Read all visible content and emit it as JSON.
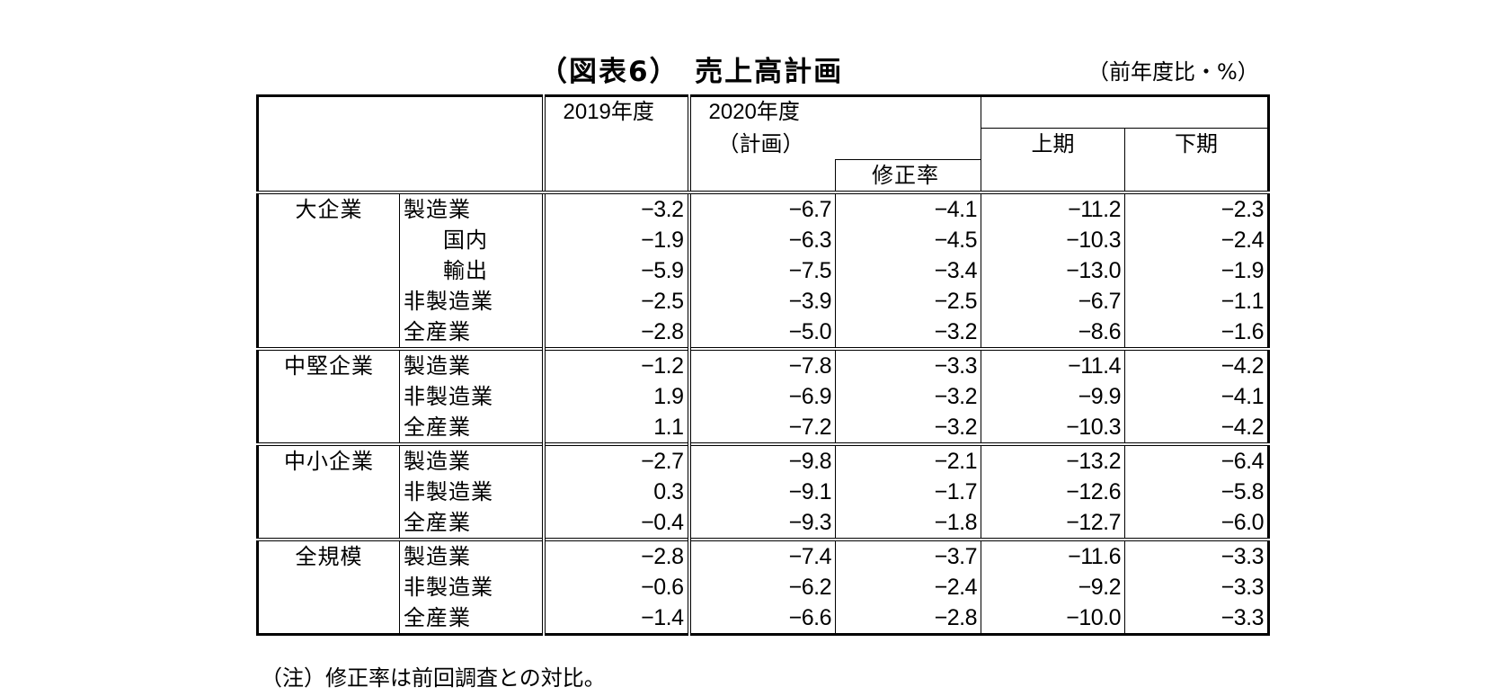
{
  "title": {
    "main": "（図表6）　売上高計画",
    "unit": "（前年度比・%）"
  },
  "header": {
    "y2019": "2019年度",
    "y2020": "2020年度",
    "y2020_sub": "（計画）",
    "revision": "修正率",
    "h1": "上期",
    "h2": "下期"
  },
  "groups": [
    {
      "name": "大企業",
      "rows": [
        {
          "label": "製造業",
          "y2019": "−3.2",
          "plan": "−6.7",
          "rev": "−4.1",
          "h1": "−11.2",
          "h2": "−2.3"
        },
        {
          "label": "国内",
          "y2019": "−1.9",
          "plan": "−6.3",
          "rev": "−4.5",
          "h1": "−10.3",
          "h2": "−2.4"
        },
        {
          "label": "輸出",
          "y2019": "−5.9",
          "plan": "−7.5",
          "rev": "−3.4",
          "h1": "−13.0",
          "h2": "−1.9"
        },
        {
          "label": "非製造業",
          "y2019": "−2.5",
          "plan": "−3.9",
          "rev": "−2.5",
          "h1": "−6.7",
          "h2": "−1.1"
        },
        {
          "label": "全産業",
          "y2019": "−2.8",
          "plan": "−5.0",
          "rev": "−3.2",
          "h1": "−8.6",
          "h2": "−1.6"
        }
      ]
    },
    {
      "name": "中堅企業",
      "rows": [
        {
          "label": "製造業",
          "y2019": "−1.2",
          "plan": "−7.8",
          "rev": "−3.3",
          "h1": "−11.4",
          "h2": "−4.2"
        },
        {
          "label": "非製造業",
          "y2019": "1.9",
          "plan": "−6.9",
          "rev": "−3.2",
          "h1": "−9.9",
          "h2": "−4.1"
        },
        {
          "label": "全産業",
          "y2019": "1.1",
          "plan": "−7.2",
          "rev": "−3.2",
          "h1": "−10.3",
          "h2": "−4.2"
        }
      ]
    },
    {
      "name": "中小企業",
      "rows": [
        {
          "label": "製造業",
          "y2019": "−2.7",
          "plan": "−9.8",
          "rev": "−2.1",
          "h1": "−13.2",
          "h2": "−6.4"
        },
        {
          "label": "非製造業",
          "y2019": "0.3",
          "plan": "−9.1",
          "rev": "−1.7",
          "h1": "−12.6",
          "h2": "−5.8"
        },
        {
          "label": "全産業",
          "y2019": "−0.4",
          "plan": "−9.3",
          "rev": "−1.8",
          "h1": "−12.7",
          "h2": "−6.0"
        }
      ]
    },
    {
      "name": "全規模",
      "rows": [
        {
          "label": "製造業",
          "y2019": "−2.8",
          "plan": "−7.4",
          "rev": "−3.7",
          "h1": "−11.6",
          "h2": "−3.3"
        },
        {
          "label": "非製造業",
          "y2019": "−0.6",
          "plan": "−6.2",
          "rev": "−2.4",
          "h1": "−9.2",
          "h2": "−3.3"
        },
        {
          "label": "全産業",
          "y2019": "−1.4",
          "plan": "−6.6",
          "rev": "−2.8",
          "h1": "−10.0",
          "h2": "−3.3"
        }
      ]
    }
  ],
  "note": "（注）修正率は前回調査との対比。"
}
